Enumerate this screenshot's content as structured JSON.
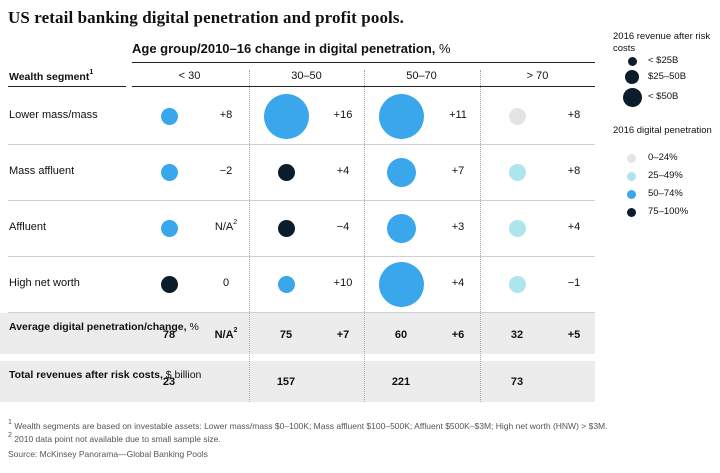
{
  "title": "US retail banking digital penetration and profit pools.",
  "subtitle": "Age group/2010–16 change in digital penetration,",
  "subtitle_unit": "%",
  "wealth_header": "Wealth segment",
  "wealth_header_note": "1",
  "colors": {
    "d0_24": "#e4e4e4",
    "d25_49": "#aee6ee",
    "d50_74": "#3aa7ec",
    "d75_100": "#0b1c2b",
    "band": "#ececec"
  },
  "chart_data": {
    "type": "bubble-matrix",
    "columns": [
      "< 30",
      "30–50",
      "50–70",
      "> 70"
    ],
    "rows": [
      {
        "label": "Lower mass/mass",
        "cells": [
          {
            "size": "small",
            "penetration": "50–74%",
            "change": "+8"
          },
          {
            "size": "large",
            "penetration": "50–74%",
            "change": "+16"
          },
          {
            "size": "large",
            "penetration": "50–74%",
            "change": "+11"
          },
          {
            "size": "small",
            "penetration": "0–24%",
            "change": "+8"
          }
        ]
      },
      {
        "label": "Mass affluent",
        "cells": [
          {
            "size": "small",
            "penetration": "50–74%",
            "change": "−2"
          },
          {
            "size": "small",
            "penetration": "75–100%",
            "change": "+4"
          },
          {
            "size": "medium",
            "penetration": "50–74%",
            "change": "+7"
          },
          {
            "size": "small",
            "penetration": "25–49%",
            "change": "+8"
          }
        ]
      },
      {
        "label": "Affluent",
        "cells": [
          {
            "size": "small",
            "penetration": "50–74%",
            "change": "N/A",
            "note": "2"
          },
          {
            "size": "small",
            "penetration": "75–100%",
            "change": "−4"
          },
          {
            "size": "medium",
            "penetration": "50–74%",
            "change": "+3"
          },
          {
            "size": "small",
            "penetration": "25–49%",
            "change": "+4"
          }
        ]
      },
      {
        "label": "High net worth",
        "cells": [
          {
            "size": "small",
            "penetration": "75–100%",
            "change": "0"
          },
          {
            "size": "small",
            "penetration": "50–74%",
            "change": "+10"
          },
          {
            "size": "large",
            "penetration": "50–74%",
            "change": "+4"
          },
          {
            "size": "small",
            "penetration": "25–49%",
            "change": "−1"
          }
        ]
      }
    ],
    "average": {
      "label_bold": "Average digital penetration/change,",
      "label_unit": "%",
      "values": [
        {
          "penetration": "78",
          "change": "N/A",
          "note": "2"
        },
        {
          "penetration": "75",
          "change": "+7"
        },
        {
          "penetration": "60",
          "change": "+6"
        },
        {
          "penetration": "32",
          "change": "+5"
        }
      ]
    },
    "total": {
      "label_bold": "Total revenues after risk costs,",
      "label_unit": "$ billion",
      "values": [
        "23",
        "157",
        "221",
        "73"
      ]
    }
  },
  "legend": {
    "size_title": "2016 revenue after risk costs",
    "sizes": [
      {
        "key": "small",
        "label": "< $25B"
      },
      {
        "key": "medium",
        "label": "$25–50B"
      },
      {
        "key": "large",
        "label": "< $50B"
      }
    ],
    "color_title": "2016 digital penetration",
    "colors": [
      {
        "key": "d0_24",
        "label": "0–24%"
      },
      {
        "key": "d25_49",
        "label": "25–49%"
      },
      {
        "key": "d50_74",
        "label": "50–74%"
      },
      {
        "key": "d75_100",
        "label": "75–100%"
      }
    ]
  },
  "footnotes": {
    "note1_mark": "1",
    "note1": "Wealth segments are based on investable assets: Lower mass/mass $0–100K; Mass affluent $100–500K; Affluent $500K–$3M; High net worth (HNW) > $3M.",
    "note2_mark": "2",
    "note2": "2010 data point not available due to small sample size.",
    "source": "Source: McKinsey Panorama—Global Banking Pools"
  }
}
